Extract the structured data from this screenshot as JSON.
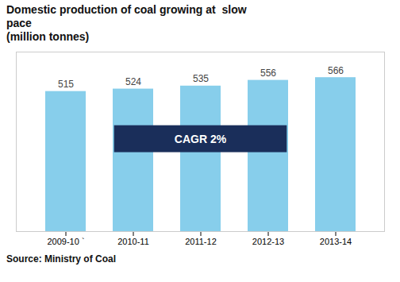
{
  "chart_data": {
    "type": "bar",
    "title": "Domestic production of coal growing at  slow\npace",
    "subtitle": "(million tonnes)",
    "caption": "Source: Ministry of Coal",
    "categories": [
      "2009-10 `",
      "2010-11",
      "2011-12",
      "2012-13",
      "2013-14"
    ],
    "values": [
      515,
      524,
      535,
      556,
      566
    ],
    "color": "#87CEEB",
    "ylim": [
      0,
      660
    ],
    "data_labels": true,
    "tick_labels": "x",
    "grid": false,
    "annotations": [
      {
        "text": "CAGR 2%",
        "color": "#1a2e5a"
      }
    ]
  }
}
